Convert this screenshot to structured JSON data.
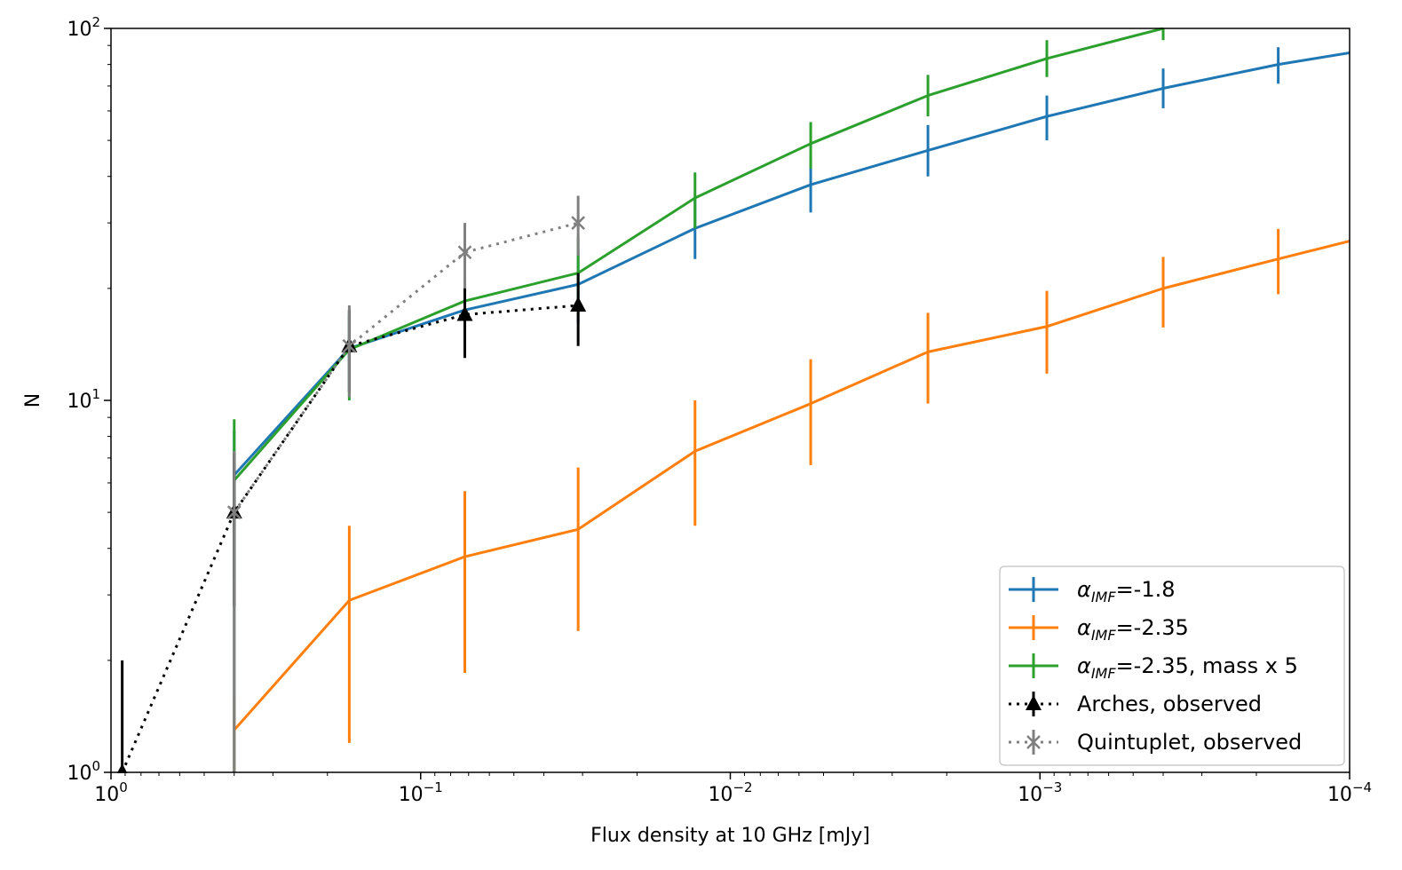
{
  "chart_data": {
    "type": "line",
    "xlabel": "Flux density at 10 GHz [mJy]",
    "ylabel": "N",
    "xscale": "log",
    "yscale": "log",
    "x_inverted": true,
    "xlim": [
      1,
      0.0001
    ],
    "ylim": [
      1,
      100
    ],
    "grid": false,
    "legend_position": "lower-right",
    "x_ticks": [
      {
        "base": "10",
        "exp": "0",
        "value": 1
      },
      {
        "base": "10",
        "exp": "−1",
        "value": 0.1
      },
      {
        "base": "10",
        "exp": "−2",
        "value": 0.01
      },
      {
        "base": "10",
        "exp": "−3",
        "value": 0.001
      },
      {
        "base": "10",
        "exp": "−4",
        "value": 0.0001
      }
    ],
    "y_ticks": [
      {
        "base": "10",
        "exp": "0",
        "value": 1
      },
      {
        "base": "10",
        "exp": "1",
        "value": 10
      },
      {
        "base": "10",
        "exp": "2",
        "value": 100
      }
    ],
    "series": [
      {
        "legend_main": "α",
        "legend_sub": "IMF",
        "legend_rest": "=-1.8",
        "color": "#1f77b4",
        "style": "solid",
        "marker": "none",
        "points": [
          {
            "x": 0.4,
            "y": 6.3,
            "lo": 1.0,
            "hi": 8.3
          },
          {
            "x": 0.17,
            "y": 13.8,
            "lo": 10.5,
            "hi": 17.0
          },
          {
            "x": 0.072,
            "y": 17.5,
            "lo": 13.5,
            "hi": 21.5
          },
          {
            "x": 0.031,
            "y": 20.5,
            "lo": 16.0,
            "hi": 25.0
          },
          {
            "x": 0.013,
            "y": 29.0,
            "lo": 24.0,
            "hi": 35.0
          },
          {
            "x": 0.0055,
            "y": 38.0,
            "lo": 32.0,
            "hi": 45.0
          },
          {
            "x": 0.0023,
            "y": 47.0,
            "lo": 40.0,
            "hi": 55.0
          },
          {
            "x": 0.00095,
            "y": 58.0,
            "lo": 50.0,
            "hi": 66.0
          },
          {
            "x": 0.0004,
            "y": 69.0,
            "lo": 61.0,
            "hi": 78.0
          },
          {
            "x": 0.00017,
            "y": 80.0,
            "lo": 71.0,
            "hi": 89.0
          },
          {
            "x": 0.0001,
            "y": 86.0
          }
        ]
      },
      {
        "legend_main": "α",
        "legend_sub": "IMF",
        "legend_rest": "=-2.35",
        "color": "#ff7f0e",
        "style": "solid",
        "marker": "none",
        "points": [
          {
            "x": 0.4,
            "y": 1.3,
            "lo": 1.0,
            "hi": 1.6
          },
          {
            "x": 0.17,
            "y": 2.9,
            "lo": 1.2,
            "hi": 4.6
          },
          {
            "x": 0.072,
            "y": 3.8,
            "lo": 1.85,
            "hi": 5.7
          },
          {
            "x": 0.031,
            "y": 4.5,
            "lo": 2.4,
            "hi": 6.6
          },
          {
            "x": 0.013,
            "y": 7.3,
            "lo": 4.6,
            "hi": 10.0
          },
          {
            "x": 0.0055,
            "y": 9.8,
            "lo": 6.7,
            "hi": 12.9
          },
          {
            "x": 0.0023,
            "y": 13.5,
            "lo": 9.8,
            "hi": 17.2
          },
          {
            "x": 0.00095,
            "y": 15.8,
            "lo": 11.8,
            "hi": 19.7
          },
          {
            "x": 0.0004,
            "y": 20.0,
            "lo": 15.7,
            "hi": 24.3
          },
          {
            "x": 0.00017,
            "y": 24.0,
            "lo": 19.3,
            "hi": 28.9
          },
          {
            "x": 0.0001,
            "y": 26.8
          }
        ]
      },
      {
        "legend_main": "α",
        "legend_sub": "IMF",
        "legend_rest": "=-2.35, mass x 5",
        "color": "#2ca02c",
        "style": "solid",
        "marker": "none",
        "points": [
          {
            "x": 0.4,
            "y": 6.1,
            "lo": 3.3,
            "hi": 8.9
          },
          {
            "x": 0.17,
            "y": 13.7,
            "lo": 10.0,
            "hi": 17.5
          },
          {
            "x": 0.072,
            "y": 18.5,
            "lo": 14.0,
            "hi": 23.5
          },
          {
            "x": 0.031,
            "y": 22.0,
            "lo": 17.0,
            "hi": 27.5
          },
          {
            "x": 0.013,
            "y": 35.0,
            "lo": 29.0,
            "hi": 41.0
          },
          {
            "x": 0.0055,
            "y": 49.0,
            "lo": 42.0,
            "hi": 56.0
          },
          {
            "x": 0.0023,
            "y": 66.0,
            "lo": 58.0,
            "hi": 75.0
          },
          {
            "x": 0.00095,
            "y": 83.0,
            "lo": 74.0,
            "hi": 93.0
          },
          {
            "x": 0.0004,
            "y": 100.0,
            "lo": 93.0,
            "hi": 100.0
          }
        ]
      },
      {
        "legend_main": "Arches, observed",
        "legend_sub": "",
        "legend_rest": "",
        "color": "#000000",
        "style": "dotted",
        "marker": "triangle",
        "points": [
          {
            "x": 0.92,
            "y": 1.0,
            "lo": 1.0,
            "hi": 2.0
          },
          {
            "x": 0.4,
            "y": 5.0,
            "lo": 2.8,
            "hi": 7.2
          },
          {
            "x": 0.17,
            "y": 14.0,
            "lo": 10.5,
            "hi": 17.5
          },
          {
            "x": 0.072,
            "y": 17.0,
            "lo": 13.0,
            "hi": 21.0
          },
          {
            "x": 0.031,
            "y": 18.0,
            "lo": 14.0,
            "hi": 22.0
          }
        ]
      },
      {
        "legend_main": "Quintuplet, observed",
        "legend_sub": "",
        "legend_rest": "",
        "color": "#808080",
        "style": "dotted",
        "marker": "x",
        "points": [
          {
            "x": 0.4,
            "y": 5.0,
            "lo": 1.0,
            "hi": 7.3
          },
          {
            "x": 0.17,
            "y": 14.0,
            "lo": 10.2,
            "hi": 18.0
          },
          {
            "x": 0.072,
            "y": 25.0,
            "lo": 20.0,
            "hi": 30.0
          },
          {
            "x": 0.031,
            "y": 30.0,
            "lo": 24.5,
            "hi": 35.5
          }
        ]
      }
    ]
  }
}
